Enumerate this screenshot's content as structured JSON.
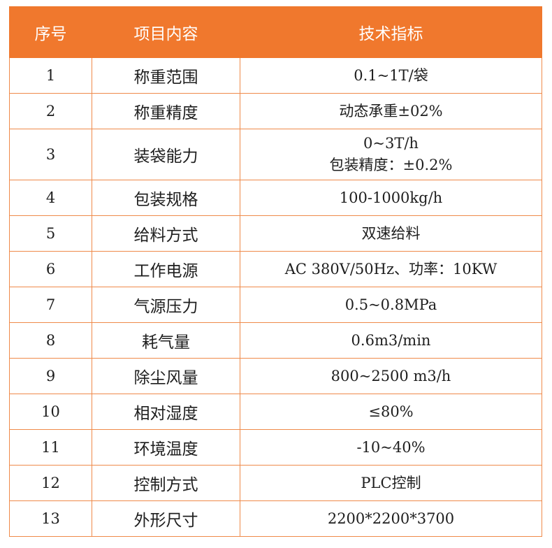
{
  "header": {
    "col_no": "序号",
    "col_item": "项目内容",
    "col_spec": "技术指标"
  },
  "rows": [
    {
      "no": "1",
      "item": "称重范围",
      "spec": [
        "0.1~1T/袋"
      ]
    },
    {
      "no": "2",
      "item": "称重精度",
      "spec": [
        "动态承重±02%"
      ]
    },
    {
      "no": "3",
      "item": "装袋能力",
      "spec": [
        "0~3T/h",
        "包装精度：±0.2%"
      ]
    },
    {
      "no": "4",
      "item": "包装规格",
      "spec": [
        "100-1000kg/h"
      ]
    },
    {
      "no": "5",
      "item": "给料方式",
      "spec": [
        "双速给料"
      ]
    },
    {
      "no": "6",
      "item": "工作电源",
      "spec": [
        "AC 380V/50Hz、功率：10KW"
      ]
    },
    {
      "no": "7",
      "item": "气源压力",
      "spec": [
        "0.5~0.8MPa"
      ]
    },
    {
      "no": "8",
      "item": "耗气量",
      "spec": [
        "0.6m3/min"
      ]
    },
    {
      "no": "9",
      "item": "除尘风量",
      "spec": [
        "800~2500 m3/h"
      ]
    },
    {
      "no": "10",
      "item": "相对湿度",
      "spec": [
        "≤80%"
      ]
    },
    {
      "no": "11",
      "item": "环境温度",
      "spec": [
        "-10~40%"
      ]
    },
    {
      "no": "12",
      "item": "控制方式",
      "spec": [
        "PLC控制"
      ]
    },
    {
      "no": "13",
      "item": "外形尺寸",
      "spec": [
        "2200*2200*3700"
      ]
    }
  ],
  "colors": {
    "header_bg": "#f0782d",
    "header_text": "#ffffff",
    "border": "#ef8a4a"
  }
}
